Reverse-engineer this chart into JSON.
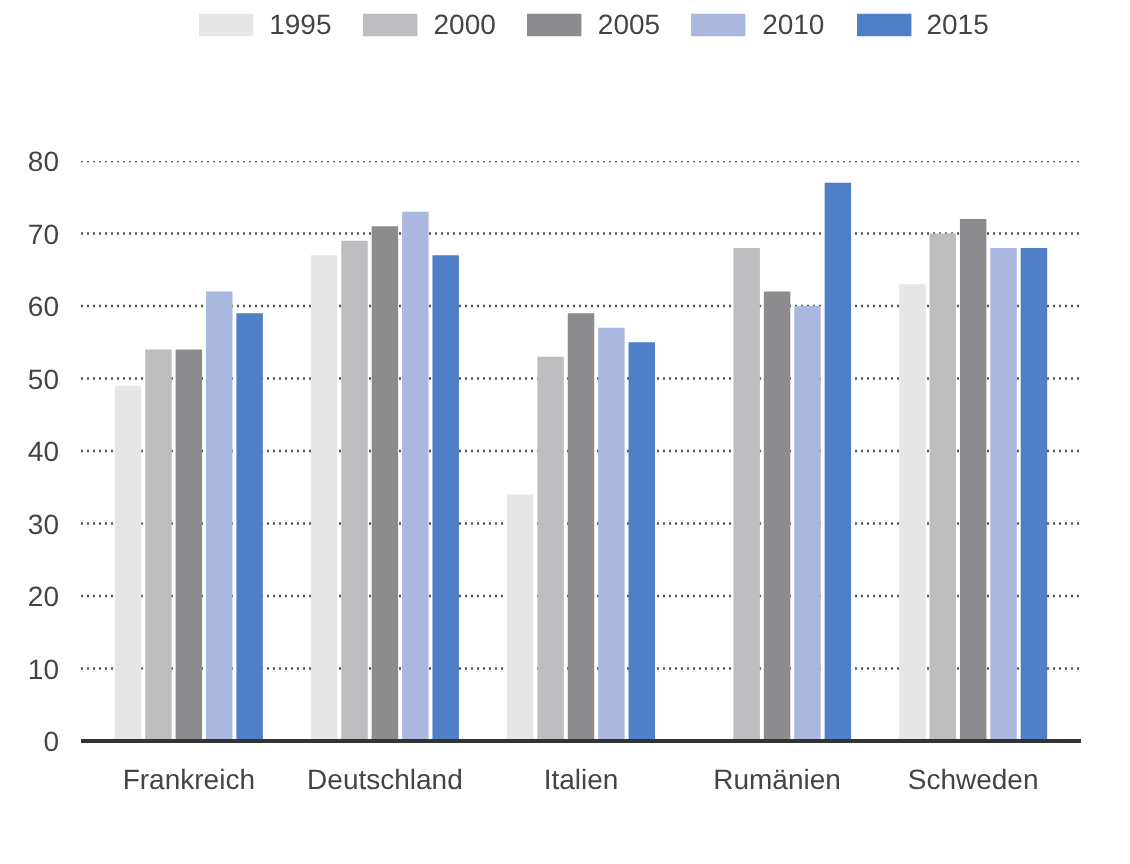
{
  "chart_data": {
    "type": "bar",
    "categories": [
      "Frankreich",
      "Deutschland",
      "Italien",
      "Rumänien",
      "Schweden"
    ],
    "series": [
      {
        "name": "1995",
        "color": "#e6e6e6",
        "values": [
          49,
          67,
          34,
          null,
          63
        ]
      },
      {
        "name": "2000",
        "color": "#bdbdbf",
        "values": [
          54,
          69,
          53,
          68,
          70
        ]
      },
      {
        "name": "2005",
        "color": "#8c8c8e",
        "values": [
          54,
          71,
          59,
          62,
          72
        ]
      },
      {
        "name": "2010",
        "color": "#aab8e0",
        "values": [
          62,
          73,
          57,
          60,
          68
        ]
      },
      {
        "name": "2015",
        "color": "#4f7fc6",
        "values": [
          59,
          67,
          55,
          77,
          68
        ]
      }
    ],
    "ylim": [
      0,
      80
    ],
    "yticks": [
      0,
      10,
      20,
      30,
      40,
      50,
      60,
      70,
      80
    ],
    "grid": "y",
    "legend": "top"
  }
}
